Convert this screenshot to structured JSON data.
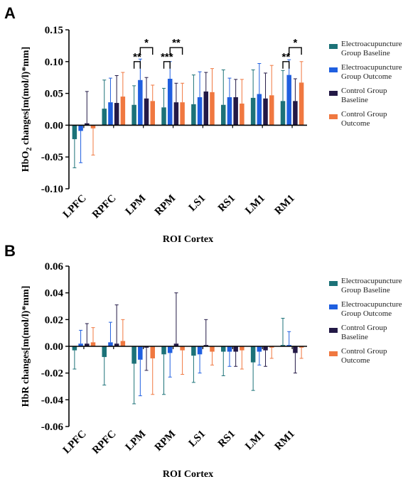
{
  "colors": {
    "eabase": "#1c7278",
    "eaout": "#1f5fe0",
    "cbase": "#231946",
    "cout": "#f07840"
  },
  "chart_data": [
    {
      "id": "A",
      "type": "bar",
      "panel_label": "A",
      "ylabel_pre": "HbO",
      "ylabel_sub": "2",
      "ylabel_post": " changes[m(mol/l)*mm]",
      "xlabel": "ROI Cortex",
      "ylim": [
        -0.1,
        0.15
      ],
      "yticks": [
        -0.1,
        -0.05,
        0.0,
        0.05,
        0.1,
        0.15
      ],
      "ytick_labels": [
        "-0.10",
        "-0.05",
        "0.00",
        "0.05",
        "0.10",
        "0.15"
      ],
      "categories": [
        "LPFC",
        "RPFC",
        "LPM",
        "RPM",
        "LS1",
        "RS1",
        "LM1",
        "RM1"
      ],
      "series": [
        {
          "name": "Electroacupuncture Group Baseline",
          "name_lines": [
            "Electroacupuncture",
            "Group Baseline"
          ],
          "color_key": "eabase",
          "values": [
            -0.022,
            0.026,
            0.032,
            0.028,
            0.033,
            0.032,
            0.043,
            0.038
          ],
          "errors": [
            0.045,
            0.045,
            0.03,
            0.03,
            0.046,
            0.055,
            0.044,
            0.048
          ]
        },
        {
          "name": "Electroacupuncture Group Outcome",
          "name_lines": [
            "Electroacupuncture",
            "Group Outcome"
          ],
          "color_key": "eaout",
          "values": [
            -0.009,
            0.036,
            0.071,
            0.073,
            0.044,
            0.044,
            0.049,
            0.079
          ],
          "errors": [
            0.05,
            0.038,
            0.033,
            0.027,
            0.04,
            0.03,
            0.048,
            0.024
          ]
        },
        {
          "name": "Control Group Baseline",
          "name_lines": [
            "Control Group",
            "Baseline"
          ],
          "color_key": "cbase",
          "values": [
            0.003,
            0.035,
            0.042,
            0.036,
            0.053,
            0.044,
            0.042,
            0.038
          ],
          "errors": [
            0.05,
            0.043,
            0.033,
            0.03,
            0.03,
            0.028,
            0.04,
            0.035
          ]
        },
        {
          "name": "Control Group Outcome",
          "name_lines": [
            "Control Group",
            "Outcome"
          ],
          "color_key": "cout",
          "values": [
            -0.005,
            0.045,
            0.038,
            0.036,
            0.052,
            0.034,
            0.047,
            0.067
          ],
          "errors": [
            0.042,
            0.038,
            0.025,
            0.03,
            0.037,
            0.038,
            0.047,
            0.033
          ]
        }
      ],
      "significance": [
        {
          "category": "LPM",
          "from": 0,
          "to": 1,
          "label": "**",
          "y": 0.1
        },
        {
          "category": "LPM",
          "from": 1,
          "to": 3,
          "label": "*",
          "y": 0.122
        },
        {
          "category": "RPM",
          "from": 0,
          "to": 1,
          "label": "***",
          "y": 0.1
        },
        {
          "category": "RPM",
          "from": 1,
          "to": 3,
          "label": "**",
          "y": 0.122
        },
        {
          "category": "RM1",
          "from": 0,
          "to": 1,
          "label": "**",
          "y": 0.1
        },
        {
          "category": "RM1",
          "from": 1,
          "to": 3,
          "label": "*",
          "y": 0.122
        }
      ]
    },
    {
      "id": "B",
      "type": "bar",
      "panel_label": "B",
      "ylabel_pre": "HbR changes[m(mol/l)*mm]",
      "ylabel_sub": "",
      "ylabel_post": "",
      "xlabel": "ROI Cortex",
      "ylim": [
        -0.06,
        0.06
      ],
      "yticks": [
        -0.06,
        -0.04,
        -0.02,
        0.0,
        0.02,
        0.04,
        0.06
      ],
      "ytick_labels": [
        "-0.06",
        "-0.04",
        "-0.02",
        "0.00",
        "0.02",
        "0.04",
        "0.06"
      ],
      "categories": [
        "LPFC",
        "RPFC",
        "LPM",
        "RPM",
        "LS1",
        "RS1",
        "LM1",
        "RM1"
      ],
      "series": [
        {
          "name": "Electroacupuncture Group Baseline",
          "name_lines": [
            "Electroacupuncture",
            "Group Baseline"
          ],
          "color_key": "eabase",
          "values": [
            -0.003,
            -0.008,
            -0.013,
            -0.006,
            -0.007,
            -0.004,
            -0.012,
            0.001
          ],
          "errors": [
            0.014,
            0.021,
            0.03,
            0.03,
            0.02,
            0.018,
            0.021,
            0.02
          ]
        },
        {
          "name": "Electroacupuncture Group Outcome",
          "name_lines": [
            "Electroacupuncture",
            "Group Outcome"
          ],
          "color_key": "eaout",
          "values": [
            0.002,
            0.003,
            -0.01,
            -0.005,
            -0.006,
            -0.004,
            -0.004,
            0.001
          ],
          "errors": [
            0.01,
            0.015,
            0.027,
            0.018,
            0.014,
            0.011,
            0.01,
            0.01
          ]
        },
        {
          "name": "Control Group Baseline",
          "name_lines": [
            "Control Group",
            "Baseline"
          ],
          "color_key": "cbase",
          "values": [
            0.002,
            0.002,
            -0.001,
            0.002,
            0.001,
            -0.004,
            -0.003,
            -0.005
          ],
          "errors": [
            0.015,
            0.029,
            0.017,
            0.038,
            0.019,
            0.011,
            0.012,
            0.015
          ]
        },
        {
          "name": "Control Group Outcome",
          "name_lines": [
            "Control Group",
            "Outcome"
          ],
          "color_key": "cout",
          "values": [
            0.003,
            0.004,
            -0.009,
            -0.003,
            -0.004,
            -0.003,
            -0.001,
            -0.001
          ],
          "errors": [
            0.011,
            0.016,
            0.027,
            0.018,
            0.01,
            0.014,
            0.008,
            0.008
          ]
        }
      ],
      "significance": []
    }
  ]
}
